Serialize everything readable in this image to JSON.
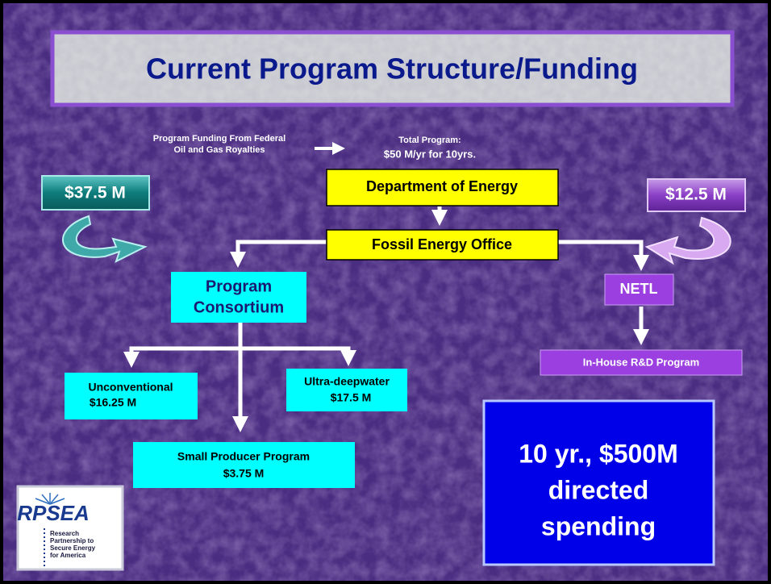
{
  "title": "Current Program Structure/Funding",
  "funding_source": [
    "Program Funding From Federal",
    "Oil and Gas Royalties"
  ],
  "total_program": {
    "label": "Total Program:",
    "amount": "$50 M/yr for 10yrs."
  },
  "left_amount": "$37.5 M",
  "right_amount": "$12.5 M",
  "nodes": [
    {
      "label": [
        "Department of Energy"
      ]
    },
    {
      "label": [
        "Fossil Energy Office"
      ]
    },
    {
      "label": [
        "Program",
        "Consortium"
      ]
    },
    {
      "label": [
        "NETL"
      ]
    },
    {
      "label": [
        "In-House R&D Program"
      ]
    },
    {
      "label": [
        "Unconventional",
        "$16.25 M"
      ]
    },
    {
      "label": [
        "Ultra-deepwater",
        "$17.5 M"
      ]
    },
    {
      "label": [
        "Small Producer Program",
        "$3.75 M"
      ]
    }
  ],
  "summary": [
    "10 yr., $500M",
    "directed",
    "spending"
  ],
  "logo": {
    "name": "RPSEA",
    "tagline": [
      "Research",
      "Partnership to",
      "Secure Energy",
      "for America"
    ]
  }
}
